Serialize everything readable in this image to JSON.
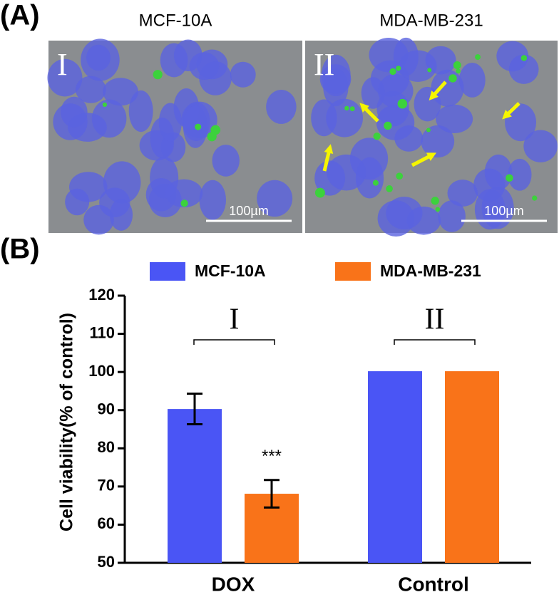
{
  "panel_a": {
    "label": "(A)",
    "images": [
      {
        "title": "MCF-10A",
        "numeral": "I",
        "scale_bar": "100µm"
      },
      {
        "title": "MDA-MB-231",
        "numeral": "II",
        "scale_bar": "100µm"
      }
    ]
  },
  "chart_data": {
    "type": "bar",
    "panel_label": "(B)",
    "y_label": "Cell viability(% of control)",
    "categories": [
      "DOX",
      "Control"
    ],
    "series": [
      {
        "name": "MCF-10A",
        "color": "#4a55f5",
        "values": [
          90.3,
          100.2
        ],
        "errors": [
          4,
          0
        ]
      },
      {
        "name": "MDA-MB-231",
        "color": "#f97319",
        "values": [
          68.1,
          100.2
        ],
        "errors": [
          3.6,
          0
        ]
      }
    ],
    "ylim": [
      50,
      120
    ],
    "yticks": [
      50,
      60,
      70,
      80,
      90,
      100,
      110,
      120
    ],
    "significance": "***",
    "group_labels": [
      "I",
      "II"
    ]
  }
}
